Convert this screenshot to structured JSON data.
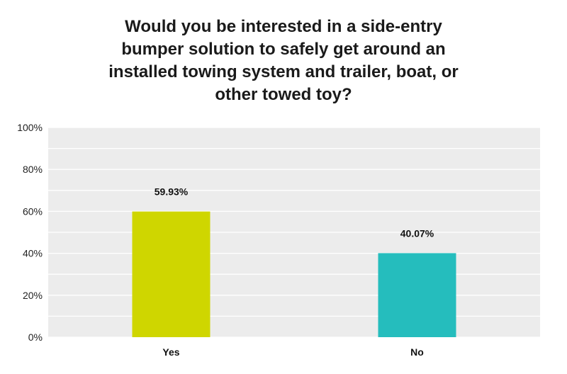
{
  "chart_data": {
    "type": "bar",
    "title": "Would you be interested in a side-entry\nbumper solution to safely get around an\ninstalled towing system and trailer, boat, or\nother towed toy?",
    "xlabel": "",
    "ylabel": "",
    "categories": [
      "Yes",
      "No"
    ],
    "values": [
      59.93,
      40.07
    ],
    "data_labels": [
      "59.93%",
      "40.07%"
    ],
    "colors": [
      "#cfd600",
      "#25bdbd"
    ],
    "ylim": [
      0,
      100
    ],
    "yticks": [
      0,
      20,
      40,
      60,
      80,
      100
    ],
    "ytick_labels": [
      "0%",
      "20%",
      "40%",
      "60%",
      "80%",
      "100%"
    ],
    "grid": true,
    "legend": "none",
    "plot_background": "#ececec",
    "grid_color": "#ffffff"
  }
}
